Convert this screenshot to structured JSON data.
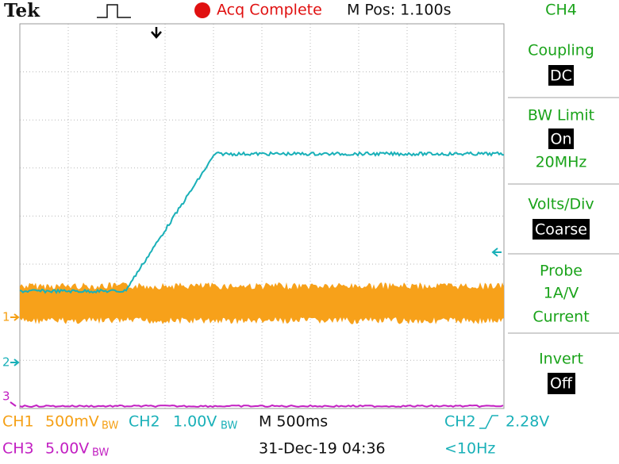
{
  "header": {
    "brand": "Tek",
    "status": "Acq Complete",
    "position": "M Pos: 1.100s",
    "menu_title": "CH4"
  },
  "side_menu": [
    {
      "label": "Coupling",
      "value": "DC"
    },
    {
      "label": "BW Limit",
      "value": "On",
      "detail": "20MHz"
    },
    {
      "label": "Volts/Div",
      "value": "Coarse"
    },
    {
      "label": "Probe",
      "lines": [
        "1A/V",
        "Current"
      ]
    },
    {
      "label": "Invert",
      "value": "Off"
    }
  ],
  "markers": {
    "ch1": "1",
    "ch2": "2",
    "ch3": "3"
  },
  "footer": {
    "ch1": {
      "name": "CH1",
      "scale": "500mV",
      "bw": "BW"
    },
    "ch2": {
      "name": "CH2",
      "scale": "1.00V",
      "bw": "BW"
    },
    "ch3": {
      "name": "CH3",
      "scale": "5.00V",
      "bw": "BW"
    },
    "timebase": "M 500ms",
    "trigger": {
      "source": "CH2",
      "level": "2.28V"
    },
    "date": "31-Dec-19 04:36",
    "frequency": "<10Hz"
  }
}
